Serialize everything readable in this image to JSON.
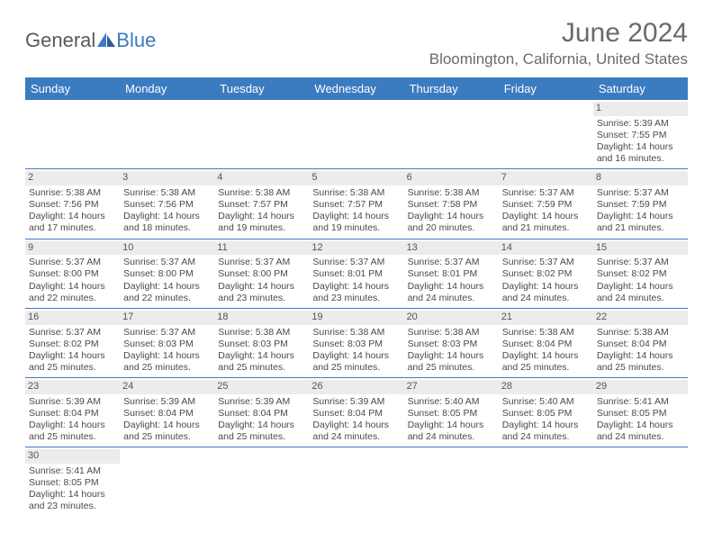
{
  "logo": {
    "text1": "General",
    "text2": "Blue"
  },
  "title": "June 2024",
  "location": "Bloomington, California, United States",
  "colors": {
    "header_bg": "#3b7bbf",
    "header_text": "#ffffff",
    "daynum_bg": "#ececec",
    "text": "#4a4a4a",
    "border": "#3b7bbf"
  },
  "dayNames": [
    "Sunday",
    "Monday",
    "Tuesday",
    "Wednesday",
    "Thursday",
    "Friday",
    "Saturday"
  ],
  "weeks": [
    [
      {
        "n": "",
        "lines": []
      },
      {
        "n": "",
        "lines": []
      },
      {
        "n": "",
        "lines": []
      },
      {
        "n": "",
        "lines": []
      },
      {
        "n": "",
        "lines": []
      },
      {
        "n": "",
        "lines": []
      },
      {
        "n": "1",
        "lines": [
          "Sunrise: 5:39 AM",
          "Sunset: 7:55 PM",
          "Daylight: 14 hours",
          "and 16 minutes."
        ]
      }
    ],
    [
      {
        "n": "2",
        "lines": [
          "Sunrise: 5:38 AM",
          "Sunset: 7:56 PM",
          "Daylight: 14 hours",
          "and 17 minutes."
        ]
      },
      {
        "n": "3",
        "lines": [
          "Sunrise: 5:38 AM",
          "Sunset: 7:56 PM",
          "Daylight: 14 hours",
          "and 18 minutes."
        ]
      },
      {
        "n": "4",
        "lines": [
          "Sunrise: 5:38 AM",
          "Sunset: 7:57 PM",
          "Daylight: 14 hours",
          "and 19 minutes."
        ]
      },
      {
        "n": "5",
        "lines": [
          "Sunrise: 5:38 AM",
          "Sunset: 7:57 PM",
          "Daylight: 14 hours",
          "and 19 minutes."
        ]
      },
      {
        "n": "6",
        "lines": [
          "Sunrise: 5:38 AM",
          "Sunset: 7:58 PM",
          "Daylight: 14 hours",
          "and 20 minutes."
        ]
      },
      {
        "n": "7",
        "lines": [
          "Sunrise: 5:37 AM",
          "Sunset: 7:59 PM",
          "Daylight: 14 hours",
          "and 21 minutes."
        ]
      },
      {
        "n": "8",
        "lines": [
          "Sunrise: 5:37 AM",
          "Sunset: 7:59 PM",
          "Daylight: 14 hours",
          "and 21 minutes."
        ]
      }
    ],
    [
      {
        "n": "9",
        "lines": [
          "Sunrise: 5:37 AM",
          "Sunset: 8:00 PM",
          "Daylight: 14 hours",
          "and 22 minutes."
        ]
      },
      {
        "n": "10",
        "lines": [
          "Sunrise: 5:37 AM",
          "Sunset: 8:00 PM",
          "Daylight: 14 hours",
          "and 22 minutes."
        ]
      },
      {
        "n": "11",
        "lines": [
          "Sunrise: 5:37 AM",
          "Sunset: 8:00 PM",
          "Daylight: 14 hours",
          "and 23 minutes."
        ]
      },
      {
        "n": "12",
        "lines": [
          "Sunrise: 5:37 AM",
          "Sunset: 8:01 PM",
          "Daylight: 14 hours",
          "and 23 minutes."
        ]
      },
      {
        "n": "13",
        "lines": [
          "Sunrise: 5:37 AM",
          "Sunset: 8:01 PM",
          "Daylight: 14 hours",
          "and 24 minutes."
        ]
      },
      {
        "n": "14",
        "lines": [
          "Sunrise: 5:37 AM",
          "Sunset: 8:02 PM",
          "Daylight: 14 hours",
          "and 24 minutes."
        ]
      },
      {
        "n": "15",
        "lines": [
          "Sunrise: 5:37 AM",
          "Sunset: 8:02 PM",
          "Daylight: 14 hours",
          "and 24 minutes."
        ]
      }
    ],
    [
      {
        "n": "16",
        "lines": [
          "Sunrise: 5:37 AM",
          "Sunset: 8:02 PM",
          "Daylight: 14 hours",
          "and 25 minutes."
        ]
      },
      {
        "n": "17",
        "lines": [
          "Sunrise: 5:37 AM",
          "Sunset: 8:03 PM",
          "Daylight: 14 hours",
          "and 25 minutes."
        ]
      },
      {
        "n": "18",
        "lines": [
          "Sunrise: 5:38 AM",
          "Sunset: 8:03 PM",
          "Daylight: 14 hours",
          "and 25 minutes."
        ]
      },
      {
        "n": "19",
        "lines": [
          "Sunrise: 5:38 AM",
          "Sunset: 8:03 PM",
          "Daylight: 14 hours",
          "and 25 minutes."
        ]
      },
      {
        "n": "20",
        "lines": [
          "Sunrise: 5:38 AM",
          "Sunset: 8:03 PM",
          "Daylight: 14 hours",
          "and 25 minutes."
        ]
      },
      {
        "n": "21",
        "lines": [
          "Sunrise: 5:38 AM",
          "Sunset: 8:04 PM",
          "Daylight: 14 hours",
          "and 25 minutes."
        ]
      },
      {
        "n": "22",
        "lines": [
          "Sunrise: 5:38 AM",
          "Sunset: 8:04 PM",
          "Daylight: 14 hours",
          "and 25 minutes."
        ]
      }
    ],
    [
      {
        "n": "23",
        "lines": [
          "Sunrise: 5:39 AM",
          "Sunset: 8:04 PM",
          "Daylight: 14 hours",
          "and 25 minutes."
        ]
      },
      {
        "n": "24",
        "lines": [
          "Sunrise: 5:39 AM",
          "Sunset: 8:04 PM",
          "Daylight: 14 hours",
          "and 25 minutes."
        ]
      },
      {
        "n": "25",
        "lines": [
          "Sunrise: 5:39 AM",
          "Sunset: 8:04 PM",
          "Daylight: 14 hours",
          "and 25 minutes."
        ]
      },
      {
        "n": "26",
        "lines": [
          "Sunrise: 5:39 AM",
          "Sunset: 8:04 PM",
          "Daylight: 14 hours",
          "and 24 minutes."
        ]
      },
      {
        "n": "27",
        "lines": [
          "Sunrise: 5:40 AM",
          "Sunset: 8:05 PM",
          "Daylight: 14 hours",
          "and 24 minutes."
        ]
      },
      {
        "n": "28",
        "lines": [
          "Sunrise: 5:40 AM",
          "Sunset: 8:05 PM",
          "Daylight: 14 hours",
          "and 24 minutes."
        ]
      },
      {
        "n": "29",
        "lines": [
          "Sunrise: 5:41 AM",
          "Sunset: 8:05 PM",
          "Daylight: 14 hours",
          "and 24 minutes."
        ]
      }
    ],
    [
      {
        "n": "30",
        "lines": [
          "Sunrise: 5:41 AM",
          "Sunset: 8:05 PM",
          "Daylight: 14 hours",
          "and 23 minutes."
        ]
      },
      {
        "n": "",
        "lines": []
      },
      {
        "n": "",
        "lines": []
      },
      {
        "n": "",
        "lines": []
      },
      {
        "n": "",
        "lines": []
      },
      {
        "n": "",
        "lines": []
      },
      {
        "n": "",
        "lines": []
      }
    ]
  ]
}
